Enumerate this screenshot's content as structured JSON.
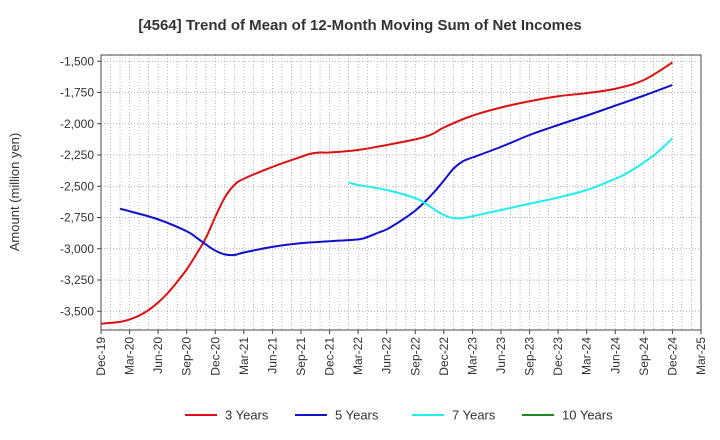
{
  "chart_data": {
    "type": "line",
    "title": "[4564]  Trend of Mean of 12-Month Moving Sum of Net Incomes",
    "xlabel": "",
    "ylabel": "Amount (million yen)",
    "ylim": [
      -3650,
      -1450
    ],
    "y_ticks": [
      -1500,
      -1750,
      -2000,
      -2250,
      -2500,
      -2750,
      -3000,
      -3250,
      -3500
    ],
    "y_tick_labels": [
      "-1,500",
      "-1,750",
      "-2,000",
      "-2,250",
      "-2,500",
      "-2,750",
      "-3,000",
      "-3,250",
      "-3,500"
    ],
    "x_tick_labels": [
      "Dec-19",
      "Mar-20",
      "Jun-20",
      "Sep-20",
      "Dec-20",
      "Mar-21",
      "Jun-21",
      "Sep-21",
      "Dec-21",
      "Mar-22",
      "Jun-22",
      "Sep-22",
      "Dec-22",
      "Mar-23",
      "Jun-23",
      "Sep-23",
      "Dec-23",
      "Mar-24",
      "Jun-24",
      "Sep-24",
      "Dec-24",
      "Mar-25"
    ],
    "grid": true,
    "legend_position": "bottom",
    "series": [
      {
        "name": "3 Years",
        "color": "#dd1111",
        "x": [
          "Dec-19",
          "Feb-20",
          "Mar-20",
          "Apr-20",
          "May-20",
          "Jun-20",
          "Jul-20",
          "Aug-20",
          "Sep-20",
          "Oct-20",
          "Nov-20",
          "Dec-20",
          "Jan-21",
          "Feb-21",
          "Mar-21",
          "Jun-21",
          "Sep-21",
          "Oct-21",
          "Nov-21",
          "Dec-21",
          "Mar-22",
          "Jun-22",
          "Sep-22",
          "Oct-22",
          "Nov-22",
          "Dec-22",
          "Mar-23",
          "Jun-23",
          "Sep-23",
          "Dec-23",
          "Mar-24",
          "Jun-24",
          "Sep-24",
          "Dec-24"
        ],
        "values": [
          -3600,
          -3585,
          -3565,
          -3535,
          -3490,
          -3430,
          -3355,
          -3265,
          -3165,
          -3045,
          -2915,
          -2745,
          -2590,
          -2490,
          -2440,
          -2345,
          -2265,
          -2240,
          -2230,
          -2230,
          -2210,
          -2170,
          -2125,
          -2105,
          -2075,
          -2030,
          -1935,
          -1870,
          -1820,
          -1780,
          -1755,
          -1720,
          -1650,
          -1510
        ]
      },
      {
        "name": "5 Years",
        "color": "#1111cc",
        "x": [
          "Feb-20",
          "Mar-20",
          "Jun-20",
          "Sep-20",
          "Oct-20",
          "Nov-20",
          "Dec-20",
          "Jan-21",
          "Feb-21",
          "Mar-21",
          "Jun-21",
          "Sep-21",
          "Dec-21",
          "Mar-22",
          "Apr-22",
          "May-22",
          "Jun-22",
          "Jul-22",
          "Aug-22",
          "Sep-22",
          "Oct-22",
          "Nov-22",
          "Dec-22",
          "Jan-23",
          "Feb-23",
          "Mar-23",
          "Jun-23",
          "Sep-23",
          "Dec-23",
          "Mar-24",
          "Jun-24",
          "Sep-24",
          "Dec-24"
        ],
        "values": [
          -2680,
          -2700,
          -2765,
          -2860,
          -2910,
          -2965,
          -3015,
          -3045,
          -3050,
          -3030,
          -2985,
          -2955,
          -2940,
          -2925,
          -2905,
          -2875,
          -2845,
          -2800,
          -2750,
          -2695,
          -2625,
          -2545,
          -2455,
          -2360,
          -2300,
          -2270,
          -2185,
          -2090,
          -2010,
          -1935,
          -1855,
          -1775,
          -1690
        ]
      },
      {
        "name": "7 Years",
        "color": "#22eeee",
        "x": [
          "Feb-22",
          "Mar-22",
          "Jun-22",
          "Sep-22",
          "Oct-22",
          "Nov-22",
          "Dec-22",
          "Jan-23",
          "Feb-23",
          "Mar-23",
          "Jun-23",
          "Sep-23",
          "Dec-23",
          "Mar-24",
          "Jun-24",
          "Jul-24",
          "Aug-24",
          "Sep-24",
          "Oct-24",
          "Nov-24",
          "Dec-24"
        ],
        "values": [
          -2470,
          -2490,
          -2530,
          -2595,
          -2635,
          -2685,
          -2730,
          -2755,
          -2755,
          -2740,
          -2690,
          -2640,
          -2590,
          -2530,
          -2440,
          -2405,
          -2360,
          -2310,
          -2255,
          -2190,
          -2115
        ]
      },
      {
        "name": "10 Years",
        "color": "#228822",
        "x": [],
        "values": []
      }
    ]
  }
}
